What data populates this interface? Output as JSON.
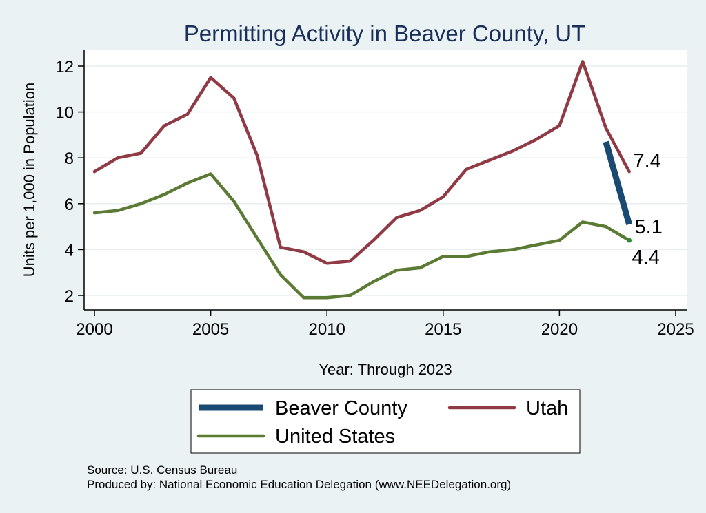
{
  "chart_data": {
    "type": "line",
    "title": "Permitting Activity in Beaver County, UT",
    "xlabel": "Year: Through 2023",
    "ylabel": "Units per 1,000 in Population",
    "xlim": [
      2000,
      2025
    ],
    "ylim": [
      1.5,
      12.7
    ],
    "x_ticks": [
      2000,
      2005,
      2010,
      2015,
      2020,
      2025
    ],
    "y_ticks": [
      2,
      4,
      6,
      8,
      10,
      12
    ],
    "grid": true,
    "legend_position": "bottom",
    "series": [
      {
        "name": "Beaver County",
        "color": "#1a4a72",
        "x": [
          2022,
          2023
        ],
        "values": [
          8.7,
          5.1
        ],
        "end_label": "5.1"
      },
      {
        "name": "Utah",
        "color": "#8f3a44",
        "x": [
          2000,
          2001,
          2002,
          2003,
          2004,
          2005,
          2006,
          2007,
          2008,
          2009,
          2010,
          2011,
          2012,
          2013,
          2014,
          2015,
          2016,
          2017,
          2018,
          2019,
          2020,
          2021,
          2022,
          2023
        ],
        "values": [
          7.4,
          8.0,
          8.2,
          9.4,
          9.9,
          11.5,
          10.6,
          8.1,
          4.1,
          3.9,
          3.4,
          3.5,
          4.4,
          5.4,
          5.7,
          6.3,
          7.5,
          7.9,
          8.3,
          8.8,
          9.4,
          12.2,
          9.3,
          7.4
        ],
        "end_label": "7.4"
      },
      {
        "name": "United States",
        "color": "#5b7a34",
        "x": [
          2000,
          2001,
          2002,
          2003,
          2004,
          2005,
          2006,
          2007,
          2008,
          2009,
          2010,
          2011,
          2012,
          2013,
          2014,
          2015,
          2016,
          2017,
          2018,
          2019,
          2020,
          2021,
          2022,
          2023
        ],
        "values": [
          5.6,
          5.7,
          6.0,
          6.4,
          6.9,
          7.3,
          6.1,
          4.5,
          2.9,
          1.9,
          1.9,
          2.0,
          2.6,
          3.1,
          3.2,
          3.7,
          3.7,
          3.9,
          4.0,
          4.2,
          4.4,
          5.2,
          5.0,
          4.4
        ],
        "end_label": "4.4"
      }
    ],
    "notes": [
      "Source: U.S. Census Bureau",
      "Produced by: National Economic Education Delegation (www.NEEDelegation.org)"
    ]
  }
}
